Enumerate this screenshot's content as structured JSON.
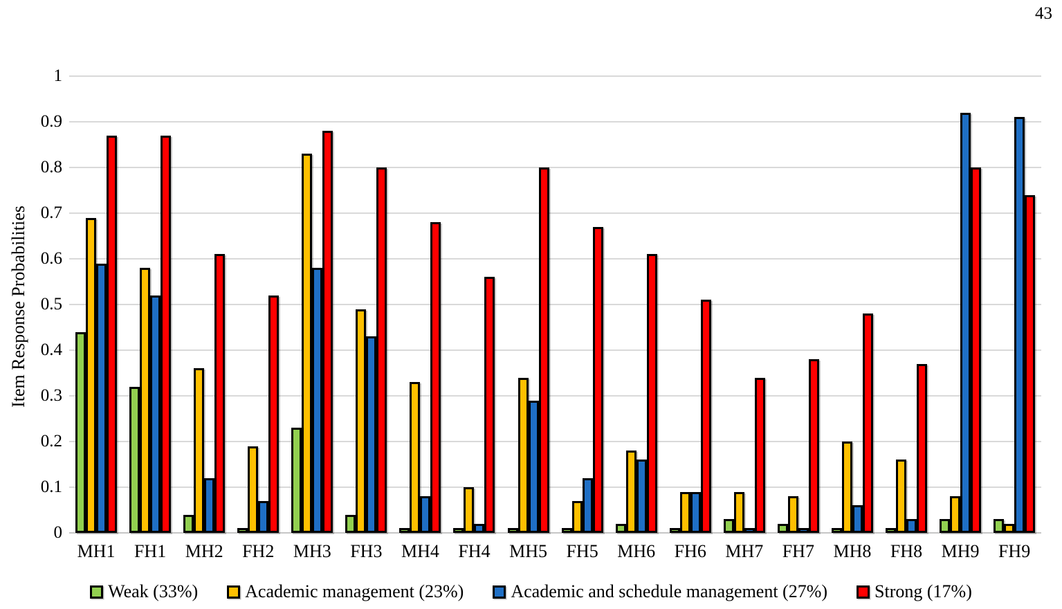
{
  "page": {
    "page_number": "43"
  },
  "chart_data": {
    "type": "bar",
    "title": "",
    "xlabel": "",
    "ylabel": "Item Response Probabilities",
    "ylim": [
      0,
      1
    ],
    "grid": "horizontal-only",
    "legend_position": "bottom",
    "gridline_color": "#d9d9d9",
    "yticks": [
      0,
      0.1,
      0.2,
      0.3,
      0.4,
      0.5,
      0.6,
      0.7,
      0.8,
      0.9,
      1
    ],
    "ytick_labels": [
      "0",
      "0.1",
      "0.2",
      "0.3",
      "0.4",
      "0.5",
      "0.6",
      "0.7",
      "0.8",
      "0.9",
      "1"
    ],
    "categories": [
      "MH1",
      "FH1",
      "MH2",
      "FH2",
      "MH3",
      "FH3",
      "MH4",
      "FH4",
      "MH5",
      "FH5",
      "MH6",
      "FH6",
      "MH7",
      "FH7",
      "MH8",
      "FH8",
      "MH9",
      "FH9"
    ],
    "series": [
      {
        "name": "Weak (33%)",
        "color": "#92D050",
        "values": [
          0.44,
          0.32,
          0.04,
          0.01,
          0.23,
          0.04,
          0.01,
          0.01,
          0.01,
          0.01,
          0.02,
          0.01,
          0.03,
          0.02,
          0.01,
          0.01,
          0.03,
          0.03
        ]
      },
      {
        "name": "Academic management (23%)",
        "color": "#FFC000",
        "values": [
          0.69,
          0.58,
          0.36,
          0.19,
          0.83,
          0.49,
          0.33,
          0.1,
          0.34,
          0.07,
          0.18,
          0.09,
          0.09,
          0.08,
          0.2,
          0.16,
          0.08,
          0.02
        ]
      },
      {
        "name": "Academic and schedule management (27%)",
        "color": "#1F6FC5",
        "values": [
          0.59,
          0.52,
          0.12,
          0.07,
          0.58,
          0.43,
          0.08,
          0.02,
          0.29,
          0.12,
          0.16,
          0.09,
          0.01,
          0.01,
          0.06,
          0.03,
          0.92,
          0.91
        ]
      },
      {
        "name": "Strong (17%)",
        "color": "#FF0000",
        "values": [
          0.87,
          0.87,
          0.61,
          0.52,
          0.88,
          0.8,
          0.68,
          0.56,
          0.8,
          0.67,
          0.61,
          0.51,
          0.34,
          0.38,
          0.48,
          0.37,
          0.8,
          0.74
        ]
      }
    ]
  }
}
